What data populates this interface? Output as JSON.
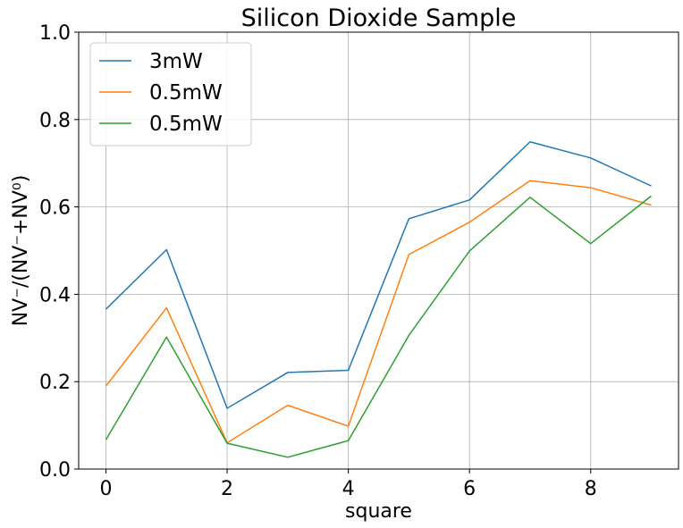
{
  "chart_data": {
    "type": "line",
    "title": "Silicon Dioxide Sample",
    "xlabel": "square",
    "ylabel": "NV⁻/(NV⁻+NV⁰)",
    "x": [
      0,
      1,
      2,
      3,
      4,
      5,
      6,
      7,
      8,
      9
    ],
    "xlim": [
      -0.45,
      9.45
    ],
    "ylim": [
      0,
      1
    ],
    "xticks": [
      0,
      2,
      4,
      6,
      8
    ],
    "yticks": [
      0.0,
      0.2,
      0.4,
      0.6,
      0.8,
      1.0
    ],
    "xtick_labels": [
      "0",
      "2",
      "4",
      "6",
      "8"
    ],
    "ytick_labels": [
      "0.0",
      "0.2",
      "0.4",
      "0.6",
      "0.8",
      "1.0"
    ],
    "grid": true,
    "legend_position": "top-left",
    "series": [
      {
        "name": "3mW",
        "color": "#1f77b4",
        "values": [
          0.366,
          0.502,
          0.139,
          0.221,
          0.226,
          0.573,
          0.616,
          0.749,
          0.712,
          0.648
        ]
      },
      {
        "name": "0.5mW",
        "color": "#ff7f0e",
        "values": [
          0.19,
          0.369,
          0.06,
          0.146,
          0.098,
          0.491,
          0.565,
          0.66,
          0.644,
          0.604
        ]
      },
      {
        "name": "0.5mW",
        "color": "#2ca02c",
        "values": [
          0.067,
          0.302,
          0.059,
          0.027,
          0.065,
          0.306,
          0.499,
          0.622,
          0.516,
          0.625
        ]
      }
    ]
  }
}
